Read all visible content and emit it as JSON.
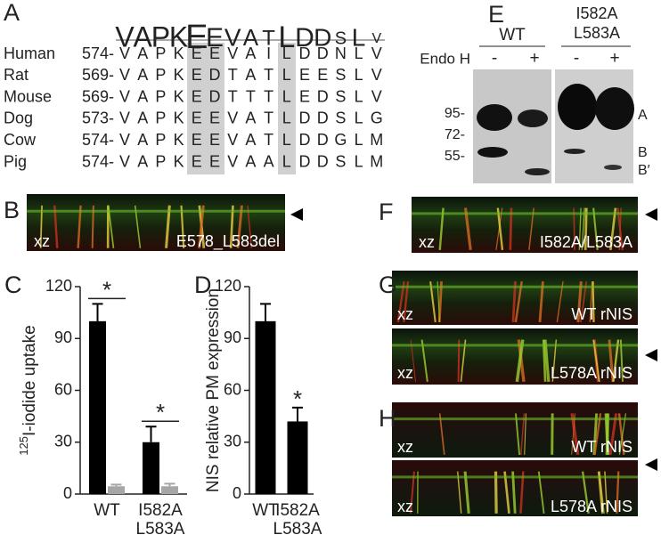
{
  "figure": {
    "A": {
      "label": "A",
      "logo": [
        "V",
        "A",
        "P",
        "K",
        "E",
        "E",
        "V",
        "A",
        "T",
        "L",
        "D",
        "D",
        "S",
        "L",
        "V"
      ],
      "rows": [
        {
          "species": "Human",
          "start": "574-",
          "residues": [
            "V",
            "A",
            "P",
            "K",
            "E",
            "E",
            "V",
            "A",
            "I",
            "L",
            "D",
            "D",
            "N",
            "L",
            "V"
          ]
        },
        {
          "species": "Rat",
          "start": "569-",
          "residues": [
            "V",
            "A",
            "P",
            "K",
            "E",
            "D",
            "T",
            "A",
            "T",
            "L",
            "E",
            "E",
            "S",
            "L",
            "V"
          ]
        },
        {
          "species": "Mouse",
          "start": "569-",
          "residues": [
            "V",
            "A",
            "P",
            "K",
            "E",
            "D",
            "T",
            "T",
            "T",
            "L",
            "E",
            "D",
            "S",
            "L",
            "V"
          ]
        },
        {
          "species": "Dog",
          "start": "573-",
          "residues": [
            "V",
            "A",
            "P",
            "K",
            "E",
            "E",
            "V",
            "A",
            "T",
            "L",
            "D",
            "D",
            "S",
            "L",
            "G"
          ]
        },
        {
          "species": "Cow",
          "start": "574-",
          "residues": [
            "V",
            "A",
            "P",
            "K",
            "E",
            "E",
            "V",
            "A",
            "T",
            "L",
            "D",
            "D",
            "G",
            "L",
            "M"
          ]
        },
        {
          "species": "Pig",
          "start": "574-",
          "residues": [
            "V",
            "A",
            "P",
            "K",
            "E",
            "E",
            "V",
            "A",
            "A",
            "L",
            "D",
            "D",
            "S",
            "L",
            "M"
          ]
        }
      ]
    },
    "B": {
      "label": "B",
      "xz": "xz",
      "caption": "E578_L583del"
    },
    "E": {
      "label": "E",
      "group_labels": [
        "WT",
        "I582A",
        "L583A"
      ],
      "treatment": "Endo H",
      "lanes": [
        "-",
        "+",
        "-",
        "+"
      ],
      "markers": [
        "95-",
        "72-",
        "55-"
      ],
      "bands": [
        "A",
        "B",
        "B′"
      ]
    },
    "F": {
      "label": "F",
      "xz": "xz",
      "caption": "I582A/L583A"
    },
    "G": {
      "label": "G",
      "images": [
        {
          "xz": "xz",
          "caption": "WT rNIS"
        },
        {
          "xz": "xz",
          "caption": "L578A rNIS"
        }
      ]
    },
    "H": {
      "label": "H",
      "images": [
        {
          "xz": "xz",
          "caption": "WT rNIS"
        },
        {
          "xz": "xz",
          "caption": "L578A rNIS"
        }
      ]
    }
  },
  "chart_data": [
    {
      "type": "bar",
      "label": "C",
      "ylabel_sup": "125",
      "ylabel": "I-iodide uptake",
      "categories": [
        "WT",
        "I582A L583A"
      ],
      "series": [
        {
          "color": "#000000",
          "values": [
            100,
            30
          ],
          "errors": [
            10,
            9
          ]
        },
        {
          "color": "#a6a6a6",
          "values": [
            4.5,
            4.5
          ],
          "errors": [
            1,
            1.5
          ]
        }
      ],
      "ylim": [
        0,
        120
      ],
      "yticks": [
        0,
        30,
        60,
        90,
        120
      ],
      "annotations": [
        "*",
        "*"
      ]
    },
    {
      "type": "bar",
      "label": "D",
      "ylabel": "NIS relative PM expression",
      "categories": [
        "WT",
        "I582A L583A"
      ],
      "series": [
        {
          "color": "#000000",
          "values": [
            100,
            42
          ],
          "errors": [
            10,
            8
          ]
        }
      ],
      "ylim": [
        0,
        120
      ],
      "yticks": [
        0,
        30,
        60,
        90,
        120
      ],
      "annotations": [
        "*"
      ]
    }
  ]
}
